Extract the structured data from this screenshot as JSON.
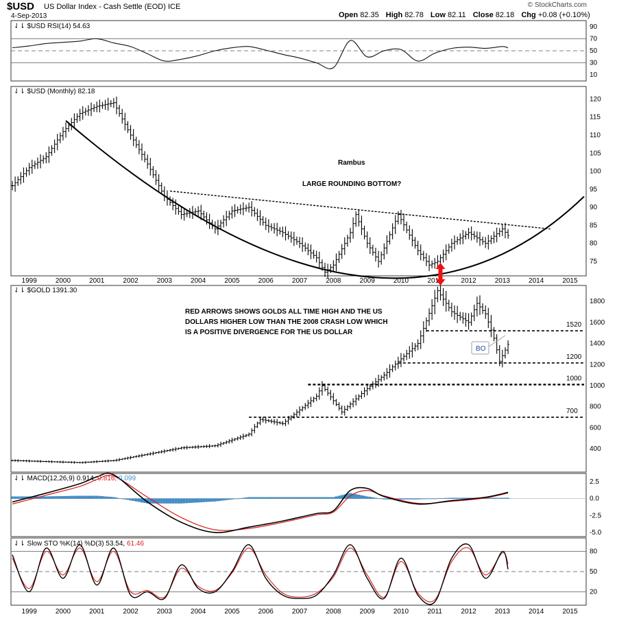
{
  "header": {
    "symbol": "$USD",
    "description": "US Dollar Index - Cash Settle (EOD)",
    "exchange": "ICE",
    "date": "4-Sep-2013",
    "open_label": "Open",
    "open": "82.35",
    "high_label": "High",
    "high": "82.78",
    "low_label": "Low",
    "low": "82.11",
    "close_label": "Close",
    "close": "82.18",
    "chg_label": "Chg",
    "chg": "+0.08 (+0.10%)",
    "credit": "© StockCharts.com"
  },
  "chart_data": [
    {
      "type": "line",
      "id": "rsi",
      "legend": "RSI(14) 54.63",
      "y_ticks": [
        90,
        70,
        50,
        30,
        10
      ],
      "ylim": [
        0,
        100
      ],
      "reference_lines": [
        70,
        50,
        30
      ],
      "x": [
        "1999-01",
        "1999-07",
        "2000-01",
        "2000-07",
        "2001-01",
        "2001-07",
        "2002-01",
        "2002-07",
        "2003-01",
        "2003-07",
        "2004-01",
        "2004-07",
        "2005-01",
        "2005-07",
        "2006-01",
        "2006-07",
        "2007-01",
        "2007-07",
        "2008-01",
        "2008-07",
        "2009-01",
        "2009-07",
        "2010-01",
        "2010-07",
        "2011-01",
        "2011-07",
        "2012-01",
        "2012-07",
        "2013-01",
        "2013-07",
        "2013-09"
      ],
      "values": [
        55,
        58,
        62,
        64,
        66,
        70,
        63,
        57,
        45,
        33,
        36,
        42,
        50,
        55,
        57,
        51,
        44,
        38,
        30,
        22,
        67,
        40,
        50,
        52,
        33,
        46,
        54,
        56,
        54,
        57,
        54.63
      ]
    },
    {
      "type": "ohlc",
      "id": "usd",
      "legend": "$USD (Monthly) 82.18",
      "y_ticks": [
        120,
        115,
        110,
        105,
        100,
        95,
        90,
        85,
        80,
        75
      ],
      "ylim": [
        71,
        123.5
      ],
      "x": [
        "1999-01",
        "1999-07",
        "2000-01",
        "2000-07",
        "2001-01",
        "2001-07",
        "2002-01",
        "2002-07",
        "2003-01",
        "2003-07",
        "2004-01",
        "2004-07",
        "2005-01",
        "2005-07",
        "2006-01",
        "2006-07",
        "2007-01",
        "2007-07",
        "2008-01",
        "2008-04",
        "2008-07",
        "2009-01",
        "2009-03",
        "2009-07",
        "2009-11",
        "2010-06",
        "2011-01",
        "2011-05",
        "2011-08",
        "2012-01",
        "2012-07",
        "2013-01",
        "2013-07",
        "2013-09"
      ],
      "values": [
        96,
        101,
        104,
        111,
        116,
        118,
        119,
        110,
        102,
        93,
        88,
        89,
        84,
        89,
        90,
        85,
        83,
        80,
        76,
        72,
        74,
        83,
        88,
        80,
        75,
        88,
        78,
        74,
        75,
        80,
        83,
        80,
        84,
        82.18
      ],
      "annotations": [
        "Rambus",
        "LARGE ROUNDING BOTTOM?"
      ],
      "trendline": {
        "style": "dashed",
        "points": [
          [
            "2003-09",
            94.5
          ],
          [
            "2014-12",
            84
          ]
        ]
      },
      "rounding_bottom": {
        "style": "solid",
        "points": [
          [
            "2000-08",
            114
          ],
          [
            "2009-02",
            71.2
          ],
          [
            "2015-12",
            93
          ]
        ]
      }
    },
    {
      "type": "ohlc",
      "id": "gold",
      "legend": "$GOLD 1391.30",
      "y_ticks": [
        1800,
        1600,
        1400,
        1200,
        1000,
        800,
        600,
        400
      ],
      "ylim": [
        180,
        1950
      ],
      "x": [
        "1999-01",
        "2000-01",
        "2001-01",
        "2002-01",
        "2003-01",
        "2004-01",
        "2005-01",
        "2006-01",
        "2006-05",
        "2007-01",
        "2008-01",
        "2008-03",
        "2008-10",
        "2009-06",
        "2010-01",
        "2010-06",
        "2011-01",
        "2011-08",
        "2012-01",
        "2012-07",
        "2012-10",
        "2013-01",
        "2013-04",
        "2013-06",
        "2013-09"
      ],
      "values": [
        290,
        280,
        270,
        290,
        350,
        410,
        430,
        540,
        680,
        640,
        900,
        1000,
        750,
        950,
        1100,
        1230,
        1400,
        1900,
        1700,
        1600,
        1780,
        1680,
        1450,
        1230,
        1391.3
      ],
      "annotations": [
        "RED ARROWS SHOWS GOLDS ALL TIME HIGH AND THE US",
        "DOLLARS HIGHER LOW THAN THE 2008 CRASH LOW WHICH",
        "IS A POSITIVE DIVERGENCE FOR THE US DOLLAR"
      ],
      "levels": [
        {
          "label": "1520",
          "value": 1520
        },
        {
          "label": "1200",
          "value": 1215
        },
        {
          "label": "1000",
          "value": 1010
        },
        {
          "label": "700",
          "value": 700
        }
      ],
      "callout": "BO"
    },
    {
      "type": "line",
      "id": "macd",
      "legend": "MACD(12,26,9)",
      "legend_values": [
        "0.914",
        "0.816",
        "0.099"
      ],
      "y_ticks": [
        "2.5",
        "0.0",
        "-2.5",
        "-5.0"
      ],
      "ylim": [
        -5.6,
        3.7
      ],
      "x": [
        "1999-01",
        "2000-01",
        "2001-01",
        "2001-07",
        "2002-01",
        "2003-01",
        "2004-01",
        "2005-01",
        "2006-01",
        "2007-01",
        "2008-01",
        "2008-07",
        "2009-01",
        "2009-07",
        "2010-01",
        "2011-01",
        "2012-01",
        "2013-01",
        "2013-09"
      ],
      "series": [
        {
          "values": [
            -0.5,
            0.8,
            2.2,
            3.2,
            3.5,
            -0.5,
            -3.5,
            -5.0,
            -4.2,
            -3.3,
            -2.2,
            -1.8,
            1.2,
            1.5,
            0.3,
            -0.8,
            -0.3,
            0.2,
            0.914
          ]
        },
        {
          "values": [
            -0.8,
            0.5,
            1.8,
            2.8,
            3.3,
            0.2,
            -2.8,
            -4.6,
            -4.4,
            -3.5,
            -2.4,
            -2.0,
            0.4,
            1.2,
            0.4,
            -0.7,
            -0.4,
            0.1,
            0.816
          ]
        },
        {
          "values": [
            0.3,
            0.3,
            0.4,
            0.4,
            0.2,
            -0.7,
            -0.7,
            -0.4,
            0.2,
            0.2,
            0.2,
            0.2,
            0.8,
            0.3,
            -0.1,
            -0.1,
            0.1,
            0.1,
            0.099
          ]
        }
      ]
    },
    {
      "type": "line",
      "id": "sto",
      "legend": "Slow STO %K(14) %D(3)",
      "legend_values": [
        "53.54",
        "61.46"
      ],
      "y_ticks": [
        80,
        50,
        20
      ],
      "ylim": [
        0,
        100
      ],
      "reference_lines": [
        80,
        50,
        20
      ],
      "x": [
        "1999-01",
        "1999-07",
        "2000-01",
        "2000-07",
        "2001-01",
        "2001-07",
        "2002-01",
        "2002-07",
        "2003-01",
        "2003-07",
        "2004-01",
        "2004-07",
        "2005-01",
        "2005-07",
        "2006-01",
        "2006-07",
        "2007-01",
        "2007-07",
        "2008-01",
        "2008-07",
        "2009-01",
        "2009-07",
        "2010-01",
        "2010-07",
        "2011-01",
        "2011-07",
        "2012-01",
        "2012-07",
        "2013-01",
        "2013-07",
        "2013-09"
      ],
      "series": [
        {
          "values": [
            75,
            20,
            85,
            40,
            90,
            30,
            85,
            15,
            20,
            10,
            60,
            25,
            20,
            50,
            90,
            40,
            15,
            10,
            15,
            45,
            90,
            40,
            10,
            70,
            15,
            5,
            70,
            90,
            40,
            80,
            53.54
          ]
        },
        {
          "values": [
            70,
            25,
            80,
            45,
            85,
            35,
            80,
            20,
            22,
            12,
            55,
            28,
            22,
            48,
            85,
            45,
            18,
            12,
            18,
            42,
            85,
            45,
            12,
            65,
            18,
            8,
            65,
            85,
            45,
            78,
            61.46
          ]
        }
      ]
    }
  ],
  "x_axis": {
    "labels": [
      "1999",
      "2000",
      "2001",
      "2002",
      "2003",
      "2004",
      "2005",
      "2006",
      "2007",
      "2008",
      "2009",
      "2010",
      "2011",
      "2012",
      "2013",
      "2014",
      "2015"
    ]
  },
  "colors": {
    "price": "#000000",
    "macd_signal": "#d61c1c",
    "macd_hist": "#3f8fcc",
    "divergence_arrow": "#ee1111",
    "callout_text": "#2b4aa0",
    "callout_border": "#9aa0a8"
  }
}
